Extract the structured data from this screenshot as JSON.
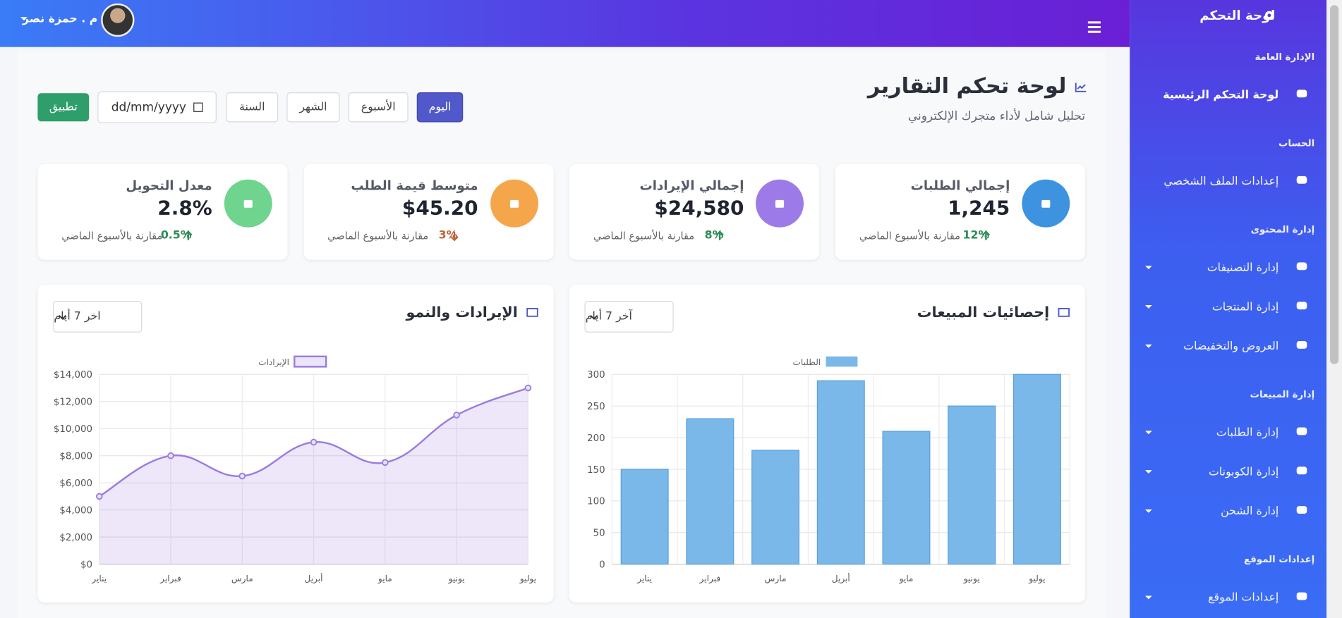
{
  "topbar": {
    "user": "م . حمزة نصر"
  },
  "sidebar": {
    "brand": "لوحة التحكم",
    "sections": [
      {
        "title": "الإدارة العامة",
        "items": [
          {
            "label": "لوحة التحكم الرئيسية",
            "active": true
          }
        ]
      },
      {
        "title": "الحساب",
        "items": [
          {
            "label": "إعدادات الملف الشخصي"
          }
        ]
      },
      {
        "title": "إدارة المحتوى",
        "items": [
          {
            "label": "إدارة التصنيفات",
            "expandable": true
          },
          {
            "label": "إدارة المنتجات",
            "expandable": true
          },
          {
            "label": "العروض والتخفيضات",
            "expandable": true
          }
        ]
      },
      {
        "title": "إدارة المبيعات",
        "items": [
          {
            "label": "إدارة الطلبات",
            "expandable": true
          },
          {
            "label": "إدارة الكوبونات",
            "expandable": true
          },
          {
            "label": "إدارة الشحن",
            "expandable": true
          }
        ]
      },
      {
        "title": "إعدادات الموقع",
        "items": [
          {
            "label": "إعدادات الموقع",
            "expandable": true
          }
        ]
      }
    ]
  },
  "header": {
    "title": "لوحة تحكم التقارير",
    "subtitle": "تحليل شامل لأداء متجرك الإلكتروني"
  },
  "filters": {
    "periods": [
      "اليوم",
      "الأسبوع",
      "الشهر",
      "السنة"
    ],
    "active": 0,
    "date_placeholder": "dd/mm/yyyy",
    "apply": "تطبيق"
  },
  "cards": [
    {
      "title": "إجمالي الطلبات",
      "value": "1,245",
      "change": "12%",
      "trend": "up",
      "note": "مقارنة بالأسبوع الماضي",
      "color": "#3d93df"
    },
    {
      "title": "إجمالي الإيرادات",
      "value": "$24,580",
      "change": "8%",
      "trend": "up",
      "note": "مقارنة بالأسبوع الماضي",
      "color": "#9c7be8"
    },
    {
      "title": "متوسط قيمة الطلب",
      "value": "$45.20",
      "change": "3%",
      "trend": "down",
      "note": "مقارنة بالأسبوع الماضي",
      "color": "#f5a64a"
    },
    {
      "title": "معدل التحويل",
      "value": "2.8%",
      "change": "0.5%",
      "trend": "up",
      "note": "مقارنة بالأسبوع الماضي",
      "color": "#6fd48e"
    }
  ],
  "chart_data": [
    {
      "type": "bar",
      "title": "إحصائيات المبيعات",
      "filter": "آخر 7 أيام",
      "categories": [
        "يناير",
        "فبراير",
        "مارس",
        "أبريل",
        "مايو",
        "يونيو",
        "يوليو"
      ],
      "series": [
        {
          "name": "الطلبات",
          "color": "#7ab8ea",
          "values": [
            150,
            230,
            180,
            290,
            210,
            250,
            300
          ]
        }
      ],
      "ylim": [
        0,
        300
      ],
      "yticks": [
        0,
        50,
        100,
        150,
        200,
        250,
        300
      ],
      "grid": true
    },
    {
      "type": "line",
      "title": "الإيرادات والنمو",
      "filter": "اخر 7 أيام",
      "categories": [
        "يناير",
        "فبراير",
        "مارس",
        "أبريل",
        "مايو",
        "يونيو",
        "يوليو"
      ],
      "series": [
        {
          "name": "الإيرادات",
          "color": "#9b7be0",
          "values": [
            5000,
            8000,
            6500,
            9000,
            7500,
            11000,
            13000
          ]
        }
      ],
      "ylim": [
        0,
        14000
      ],
      "yticks": [
        {
          "value": 0,
          "label": "$0"
        },
        {
          "value": 2000,
          "label": "$2,000"
        },
        {
          "value": 4000,
          "label": "$4,000"
        },
        {
          "value": 6000,
          "label": "$6,000"
        },
        {
          "value": 8000,
          "label": "$8,000"
        },
        {
          "value": 10000,
          "label": "$10,000"
        },
        {
          "value": 12000,
          "label": "$12,000"
        },
        {
          "value": 14000,
          "label": "$14,000"
        }
      ],
      "grid": true,
      "fill": true
    }
  ]
}
